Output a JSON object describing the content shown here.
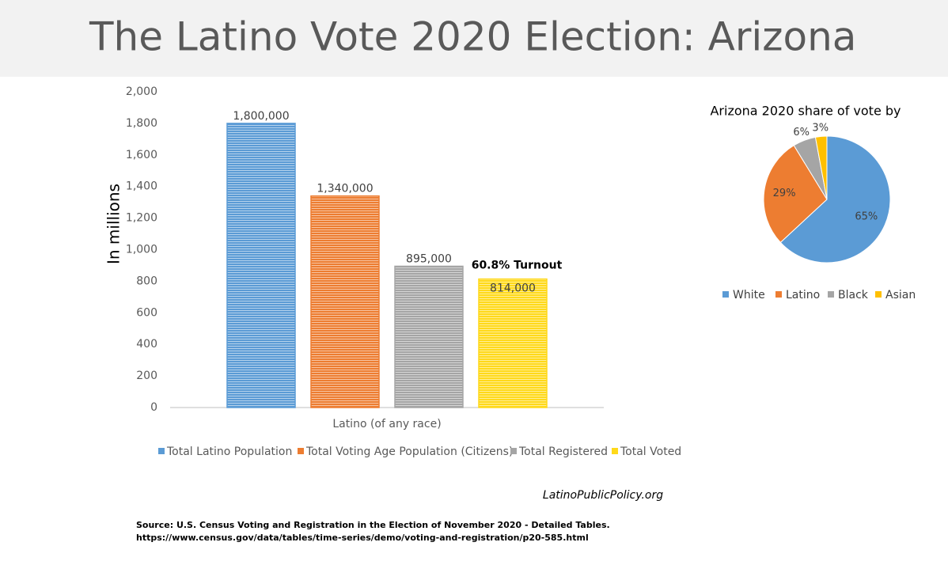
{
  "title": "The Latino Vote 2020 Election: Arizona",
  "chart_data": [
    {
      "type": "bar",
      "categories": [
        "Latino (of any race)"
      ],
      "ylabel": "In millions",
      "ylim": [
        0,
        2000
      ],
      "yticks": [
        0,
        200,
        400,
        600,
        800,
        {
          "value": 1000,
          "label": "1,000"
        },
        {
          "value": 1200,
          "label": "1,200"
        },
        {
          "value": 1400,
          "label": "1,400"
        },
        {
          "value": 1600,
          "label": "1,600"
        },
        {
          "value": 1800,
          "label": "1,800"
        },
        {
          "value": 2000,
          "label": "2,000"
        }
      ],
      "series": [
        {
          "name": "Total Latino Population",
          "color": "#5b9bd5",
          "values": [
            1800
          ],
          "value_labels": [
            "1,800,000"
          ]
        },
        {
          "name": "Total Voting Age Population (Citizens)",
          "color": "#ed7d31",
          "values": [
            1340
          ],
          "value_labels": [
            "1,340,000"
          ]
        },
        {
          "name": "Total Registered",
          "color": "#a5a5a5",
          "values": [
            895
          ],
          "value_labels": [
            "895,000"
          ]
        },
        {
          "name": "Total Voted",
          "color": "#ffd91a",
          "values": [
            814
          ],
          "value_labels": [
            "814,000"
          ]
        }
      ],
      "annotation": "60.8% Turnout",
      "legend": "bottom"
    },
    {
      "type": "pie",
      "title": "Arizona 2020 share of vote by",
      "categories": [
        "White",
        "Latino",
        "Black",
        "Asian"
      ],
      "values": [
        65,
        29,
        6,
        3
      ],
      "value_labels": [
        "65%",
        "29%",
        "6%",
        "3%"
      ],
      "colors": [
        "#5b9bd5",
        "#ed7d31",
        "#a5a5a5",
        "#ffc000"
      ],
      "legend": "bottom"
    }
  ],
  "credit": "LatinoPublicPolicy.org",
  "source": [
    "Source: U.S. Census  Voting and Registration in the Election of November 2020 - Detailed Tables.",
    "https://www.census.gov/data/tables/time-series/demo/voting-and-registration/p20-585.html"
  ]
}
